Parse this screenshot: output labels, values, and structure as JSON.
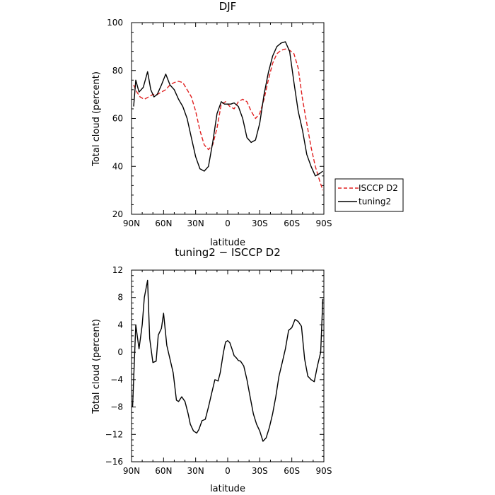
{
  "chart_data": [
    {
      "type": "line",
      "title": "DJF",
      "xlabel": "latitude",
      "ylabel": "Total cloud (percent)",
      "xlim": [
        90,
        -90
      ],
      "ylim": [
        20,
        100
      ],
      "x_ticks": [
        90,
        60,
        30,
        0,
        -30,
        -60,
        -90
      ],
      "x_tick_labels": [
        "90N",
        "60N",
        "30N",
        "0",
        "30S",
        "60S",
        "90S"
      ],
      "y_ticks": [
        20,
        40,
        60,
        80,
        100
      ],
      "y_tick_labels": [
        "20",
        "40",
        "60",
        "80",
        "100"
      ],
      "legend_position": "right",
      "series": [
        {
          "name": "ISCCP D2",
          "color": "#e02020",
          "dash": true,
          "x": [
            88,
            85,
            82,
            78,
            74,
            70,
            66,
            62,
            58,
            54,
            50,
            46,
            42,
            38,
            34,
            30,
            26,
            22,
            18,
            14,
            10,
            6,
            2,
            -2,
            -6,
            -10,
            -14,
            -18,
            -22,
            -26,
            -30,
            -34,
            -38,
            -42,
            -46,
            -50,
            -54,
            -58,
            -62,
            -66,
            -70,
            -74,
            -78,
            -82,
            -86,
            -89
          ],
          "y": [
            74,
            71,
            69,
            68,
            69,
            70,
            70,
            71,
            72,
            74,
            75,
            75.5,
            75,
            72,
            69,
            63,
            55,
            49,
            47,
            49,
            56,
            66,
            67,
            65,
            64,
            67,
            68,
            67,
            63,
            60,
            62,
            68,
            76,
            83,
            87,
            88.5,
            89,
            88.5,
            87,
            81,
            68,
            58,
            48,
            40,
            34,
            30
          ]
        },
        {
          "name": "tuning2",
          "color": "#000000",
          "dash": false,
          "x": [
            88,
            86,
            83,
            79,
            75,
            72,
            69,
            66,
            62,
            58,
            54,
            50,
            46,
            42,
            38,
            34,
            30,
            26,
            22,
            18,
            14,
            10,
            6,
            3,
            0,
            -3,
            -6,
            -10,
            -14,
            -18,
            -22,
            -26,
            -30,
            -34,
            -38,
            -42,
            -46,
            -50,
            -54,
            -58,
            -62,
            -66,
            -70,
            -74,
            -78,
            -82,
            -86,
            -89
          ],
          "y": [
            65,
            76,
            71,
            73,
            79.5,
            72,
            69,
            70,
            74,
            78.5,
            74,
            72,
            68,
            65,
            60,
            52,
            44,
            39,
            38,
            40,
            50,
            62,
            67,
            66,
            66,
            66,
            66.5,
            65,
            60,
            52,
            50,
            51,
            58,
            70,
            79,
            86,
            90,
            91.5,
            92,
            88,
            75,
            63,
            55,
            45,
            40,
            36,
            37,
            38
          ]
        }
      ]
    },
    {
      "type": "line",
      "title": "tuning2 − ISCCP D2",
      "xlabel": "latitude",
      "ylabel": "Total cloud (percent)",
      "xlim": [
        90,
        -90
      ],
      "ylim": [
        -16,
        12
      ],
      "x_ticks": [
        90,
        60,
        30,
        0,
        -30,
        -60,
        -90
      ],
      "x_tick_labels": [
        "90N",
        "60N",
        "30N",
        "0",
        "30S",
        "60S",
        "90S"
      ],
      "y_ticks": [
        -16,
        -12,
        -8,
        -4,
        0,
        4,
        8,
        12
      ],
      "y_tick_labels": [
        "−16",
        "−12",
        "−8",
        "−4",
        "0",
        "4",
        "8",
        "12"
      ],
      "series": [
        {
          "color": "#000000",
          "dash": false,
          "x": [
            89,
            86,
            83,
            80,
            78,
            75,
            73,
            70,
            67,
            65,
            62,
            60,
            57,
            54,
            51,
            48,
            46,
            43,
            40,
            37,
            35,
            32,
            29,
            27,
            24,
            21,
            18,
            15,
            12,
            9,
            7,
            4,
            2,
            0,
            -2,
            -4,
            -6,
            -8,
            -10,
            -12,
            -15,
            -18,
            -21,
            -24,
            -27,
            -30,
            -33,
            -36,
            -39,
            -42,
            -45,
            -48,
            -51,
            -54,
            -57,
            -60,
            -63,
            -66,
            -69,
            -72,
            -75,
            -78,
            -81,
            -84,
            -87,
            -89
          ],
          "y": [
            -8,
            4,
            0.5,
            4,
            8,
            10.5,
            2,
            -1.5,
            -1.3,
            2.5,
            3.5,
            5.7,
            1,
            -1,
            -3,
            -7,
            -7.2,
            -6.5,
            -7.2,
            -9,
            -10.5,
            -11.5,
            -11.8,
            -11.3,
            -10,
            -9.8,
            -8,
            -6,
            -4,
            -4.2,
            -3,
            0,
            1.5,
            1.7,
            1.4,
            0.5,
            -0.5,
            -0.8,
            -1.2,
            -1.3,
            -2,
            -4,
            -6.5,
            -9,
            -10.5,
            -11.5,
            -13,
            -12.5,
            -11,
            -9,
            -6.5,
            -3.5,
            -1.5,
            0.5,
            3.2,
            3.6,
            4.8,
            4.5,
            3.8,
            -1,
            -3.5,
            -4,
            -4.3,
            -2,
            0,
            7.8
          ]
        }
      ]
    }
  ]
}
